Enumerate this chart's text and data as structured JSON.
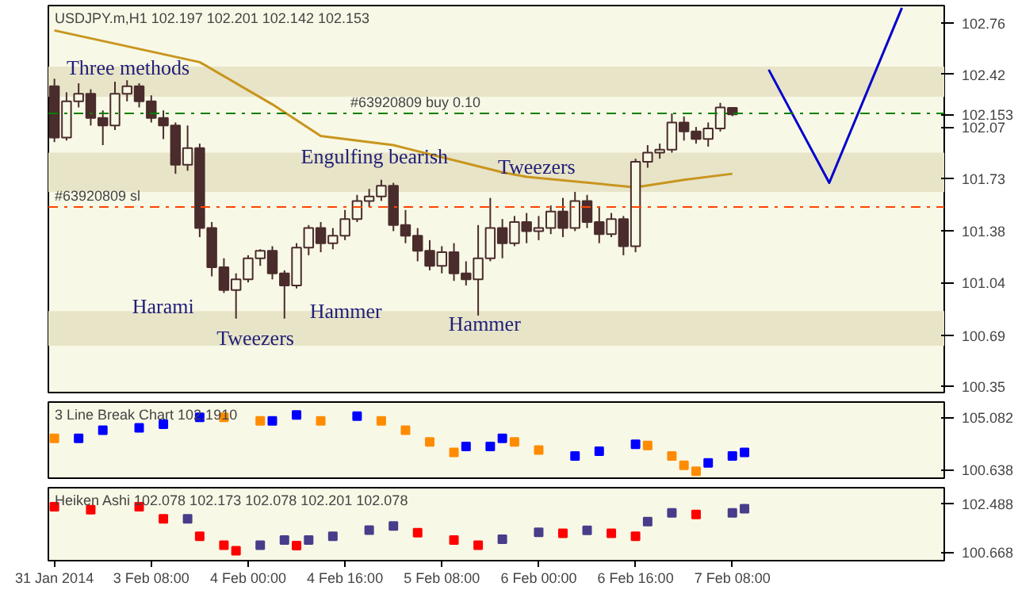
{
  "chart_data": [
    {
      "type": "candlestick",
      "title": "USDJPY.m,H1 102.197 102.201 102.142 102.153",
      "color": "#4a2c2c",
      "ohlc": [
        [
          102.34,
          102.39,
          101.97,
          102.0
        ],
        [
          102.0,
          102.3,
          101.98,
          102.24
        ],
        [
          102.24,
          102.36,
          102.2,
          102.29
        ],
        [
          102.29,
          102.32,
          102.08,
          102.13
        ],
        [
          102.13,
          102.18,
          101.95,
          102.08
        ],
        [
          102.08,
          102.37,
          102.05,
          102.29
        ],
        [
          102.29,
          102.38,
          102.24,
          102.34
        ],
        [
          102.34,
          102.36,
          102.2,
          102.24
        ],
        [
          102.24,
          102.28,
          102.1,
          102.13
        ],
        [
          102.13,
          102.18,
          101.99,
          102.08
        ],
        [
          102.08,
          102.1,
          101.76,
          101.82
        ],
        [
          101.82,
          102.08,
          101.78,
          101.93
        ],
        [
          101.93,
          101.96,
          101.34,
          101.4
        ],
        [
          101.4,
          101.44,
          101.08,
          101.14
        ],
        [
          101.14,
          101.2,
          100.97,
          100.99
        ],
        [
          100.99,
          101.1,
          100.8,
          101.06
        ],
        [
          101.06,
          101.22,
          101.04,
          101.2
        ],
        [
          101.2,
          101.26,
          101.15,
          101.25
        ],
        [
          101.25,
          101.28,
          101.06,
          101.1
        ],
        [
          101.1,
          101.12,
          100.8,
          101.02
        ],
        [
          101.02,
          101.3,
          101.0,
          101.27
        ],
        [
          101.27,
          101.42,
          101.22,
          101.4
        ],
        [
          101.4,
          101.44,
          101.24,
          101.3
        ],
        [
          101.3,
          101.4,
          101.26,
          101.35
        ],
        [
          101.35,
          101.52,
          101.32,
          101.46
        ],
        [
          101.46,
          101.62,
          101.44,
          101.58
        ],
        [
          101.58,
          101.66,
          101.54,
          101.61
        ],
        [
          101.61,
          101.72,
          101.58,
          101.68
        ],
        [
          101.68,
          101.7,
          101.38,
          101.42
        ],
        [
          101.42,
          101.52,
          101.3,
          101.35
        ],
        [
          101.35,
          101.4,
          101.18,
          101.25
        ],
        [
          101.25,
          101.32,
          101.12,
          101.15
        ],
        [
          101.15,
          101.28,
          101.1,
          101.24
        ],
        [
          101.24,
          101.3,
          101.05,
          101.1
        ],
        [
          101.1,
          101.18,
          101.02,
          101.06
        ],
        [
          101.06,
          101.42,
          100.82,
          101.2
        ],
        [
          101.2,
          101.6,
          101.18,
          101.4
        ],
        [
          101.4,
          101.46,
          101.2,
          101.3
        ],
        [
          101.3,
          101.48,
          101.28,
          101.44
        ],
        [
          101.44,
          101.5,
          101.3,
          101.38
        ],
        [
          101.38,
          101.48,
          101.32,
          101.4
        ],
        [
          101.4,
          101.55,
          101.36,
          101.51
        ],
        [
          101.51,
          101.6,
          101.34,
          101.4
        ],
        [
          101.4,
          101.64,
          101.38,
          101.58
        ],
        [
          101.58,
          101.62,
          101.4,
          101.44
        ],
        [
          101.44,
          101.54,
          101.3,
          101.36
        ],
        [
          101.36,
          101.5,
          101.34,
          101.46
        ],
        [
          101.46,
          101.48,
          101.22,
          101.28
        ],
        [
          101.28,
          101.86,
          101.24,
          101.84
        ],
        [
          101.84,
          101.95,
          101.8,
          101.9
        ],
        [
          101.9,
          101.96,
          101.86,
          101.92
        ],
        [
          101.92,
          102.16,
          101.9,
          102.1
        ],
        [
          102.1,
          102.14,
          101.98,
          102.04
        ],
        [
          102.04,
          102.07,
          101.96,
          101.99
        ],
        [
          101.99,
          102.1,
          101.94,
          102.06
        ],
        [
          102.06,
          102.23,
          102.04,
          102.2
        ],
        [
          102.197,
          102.201,
          102.142,
          102.153
        ],
        null,
        null,
        null,
        null,
        null,
        null,
        null,
        null,
        null,
        null,
        null,
        null,
        null,
        null,
        null,
        null,
        null
      ],
      "series": [
        {
          "type": "line",
          "color": "#c8961e",
          "values": [
            102.71,
            null,
            null,
            null,
            null,
            null,
            null,
            null,
            null,
            null,
            null,
            null,
            102.5,
            null,
            null,
            null,
            null,
            null,
            102.22,
            null,
            null,
            null,
            102.01,
            null,
            null,
            null,
            null,
            null,
            101.95,
            null,
            null,
            null,
            null,
            null,
            null,
            null,
            null,
            101.77,
            null,
            101.74,
            null,
            null,
            null,
            null,
            null,
            null,
            null,
            null,
            101.67,
            null,
            null,
            null,
            101.72,
            null,
            null,
            null,
            101.76,
            null,
            null,
            null,
            null,
            null,
            null,
            null,
            null,
            null,
            null,
            null,
            null,
            null,
            null,
            null,
            null,
            null
          ]
        },
        {
          "type": "line",
          "color": "#0000cc",
          "values": [
            null,
            null,
            null,
            null,
            null,
            null,
            null,
            null,
            null,
            null,
            null,
            null,
            null,
            null,
            null,
            null,
            null,
            null,
            null,
            null,
            null,
            null,
            null,
            null,
            null,
            null,
            null,
            null,
            null,
            null,
            null,
            null,
            null,
            null,
            null,
            null,
            null,
            null,
            null,
            null,
            null,
            null,
            null,
            null,
            null,
            null,
            null,
            null,
            null,
            null,
            null,
            null,
            null,
            null,
            null,
            null,
            null,
            null,
            null,
            102.45,
            null,
            null,
            null,
            null,
            101.7,
            null,
            null,
            null,
            null,
            null,
            102.86,
            null,
            null,
            null
          ]
        }
      ],
      "ylim": [
        100.31,
        102.875
      ],
      "yticks": [
        102.76,
        102.42,
        102.153,
        102.07,
        101.73,
        101.38,
        101.04,
        100.69,
        100.35
      ],
      "tick_labels": "y",
      "bands": [
        {
          "axis": "y",
          "from": 102.27,
          "to": 102.47,
          "color": "#e8e4c8"
        },
        {
          "axis": "y",
          "from": 101.64,
          "to": 101.9,
          "color": "#e8e4c8"
        },
        {
          "axis": "y",
          "from": 100.62,
          "to": 100.85,
          "color": "#e8e4c8"
        }
      ],
      "ref_lines": [
        {
          "axis": "y",
          "value": 102.16,
          "label": "#63920809 buy 0.10",
          "color": "#008000",
          "line_style": "dashed"
        },
        {
          "axis": "y",
          "value": 101.54,
          "label": "#63920809 sl",
          "color": "#ff4500",
          "line_style": "dashed"
        }
      ],
      "annotations": [
        "Three methods",
        "Engulfing bearish",
        "Tweezers",
        "Harami",
        "Tweezers",
        "Hammer",
        "Hammer"
      ]
    },
    {
      "type": "scatter",
      "title": "3 Line Break Chart 102.1910",
      "marker": "square",
      "values": [
        103.3,
        null,
        103.3,
        null,
        104.0,
        null,
        null,
        104.2,
        null,
        104.5,
        null,
        null,
        105.1,
        null,
        105.1,
        null,
        null,
        104.8,
        104.8,
        null,
        105.3,
        null,
        104.8,
        null,
        null,
        105.2,
        null,
        104.8,
        null,
        104.0,
        null,
        103.0,
        null,
        102.1,
        102.6,
        null,
        102.6,
        103.3,
        103.0,
        null,
        102.3,
        null,
        null,
        101.8,
        null,
        102.2,
        null,
        null,
        102.8,
        102.7,
        null,
        101.8,
        101.0,
        100.5,
        101.2,
        null,
        101.8,
        102.1,
        null,
        null,
        null,
        null,
        null,
        null,
        null,
        null,
        null,
        null,
        null,
        null,
        null,
        null,
        null,
        null
      ],
      "colors": [
        "#ff8c00",
        null,
        "#0000ff",
        null,
        "#0000ff",
        null,
        null,
        "#0000ff",
        null,
        "#0000ff",
        null,
        null,
        "#0000ff",
        null,
        "#ff8c00",
        null,
        null,
        "#ff8c00",
        "#0000ff",
        null,
        "#0000ff",
        null,
        "#ff8c00",
        null,
        null,
        "#0000ff",
        null,
        "#ff8c00",
        null,
        "#ff8c00",
        null,
        "#ff8c00",
        null,
        "#ff8c00",
        "#0000ff",
        null,
        "#0000ff",
        "#0000ff",
        "#ff8c00",
        null,
        "#ff8c00",
        null,
        null,
        "#0000ff",
        null,
        "#0000ff",
        null,
        null,
        "#0000ff",
        "#ff8c00",
        null,
        "#ff8c00",
        "#ff8c00",
        "#ff8c00",
        "#0000ff",
        null,
        "#0000ff",
        "#0000ff",
        null,
        null,
        null,
        null,
        null,
        null,
        null,
        null,
        null,
        null,
        null,
        null,
        null,
        null,
        null,
        null
      ],
      "ylim": [
        99.9,
        106.4
      ],
      "yticks": [
        105.082,
        100.638
      ],
      "tick_labels": "y"
    },
    {
      "type": "scatter",
      "title": "Heiken Ashi 102.078 102.173 102.078 102.201 102.078",
      "marker": "square",
      "categories": [
        "31 Jan 2014",
        null,
        null,
        null,
        null,
        null,
        null,
        null,
        "3 Feb 08:00",
        null,
        null,
        null,
        null,
        null,
        null,
        null,
        "4 Feb 00:00",
        null,
        null,
        null,
        null,
        null,
        null,
        null,
        "4 Feb 16:00",
        null,
        null,
        null,
        null,
        null,
        null,
        null,
        "5 Feb 08:00",
        null,
        null,
        null,
        null,
        null,
        null,
        null,
        "6 Feb 00:00",
        null,
        null,
        null,
        null,
        null,
        null,
        null,
        "6 Feb 16:00",
        null,
        null,
        null,
        null,
        null,
        null,
        null,
        "7 Feb 08:00",
        null,
        null,
        null,
        null,
        null,
        null,
        null,
        null,
        null,
        null,
        null,
        null,
        null,
        null,
        null,
        null,
        null
      ],
      "values": [
        102.38,
        null,
        null,
        102.27,
        null,
        null,
        null,
        102.38,
        null,
        101.93,
        null,
        101.93,
        101.27,
        null,
        100.93,
        100.72,
        null,
        100.93,
        null,
        101.13,
        100.92,
        101.13,
        null,
        101.27,
        null,
        null,
        101.5,
        null,
        101.66,
        null,
        101.4,
        null,
        null,
        101.13,
        null,
        100.93,
        null,
        101.16,
        null,
        null,
        101.42,
        null,
        101.38,
        null,
        101.49,
        null,
        101.38,
        null,
        101.27,
        101.82,
        null,
        102.15,
        null,
        102.09,
        null,
        null,
        102.15,
        102.31,
        null,
        null,
        null,
        null,
        null,
        null,
        null,
        null,
        null,
        null,
        null,
        null,
        null,
        null,
        null,
        null
      ],
      "colors": [
        "#ff0000",
        null,
        null,
        "#ff0000",
        null,
        null,
        null,
        "#ff0000",
        null,
        "#ff0000",
        null,
        "#483d8b",
        "#ff0000",
        null,
        "#ff0000",
        "#ff0000",
        null,
        "#483d8b",
        null,
        "#483d8b",
        "#ff0000",
        "#483d8b",
        null,
        "#483d8b",
        null,
        null,
        "#483d8b",
        null,
        "#483d8b",
        null,
        "#ff0000",
        null,
        null,
        "#ff0000",
        null,
        "#ff0000",
        null,
        "#483d8b",
        null,
        null,
        "#483d8b",
        null,
        "#ff0000",
        null,
        "#483d8b",
        null,
        "#ff0000",
        null,
        "#ff0000",
        "#483d8b",
        null,
        "#483d8b",
        null,
        "#ff0000",
        null,
        null,
        "#483d8b",
        "#483d8b",
        null,
        null,
        null,
        null,
        null,
        null,
        null,
        null,
        null,
        null,
        null,
        null,
        null,
        null,
        null,
        null
      ],
      "ylim": [
        100.35,
        103.1
      ],
      "yticks": [
        102.488,
        100.668
      ]
    }
  ]
}
